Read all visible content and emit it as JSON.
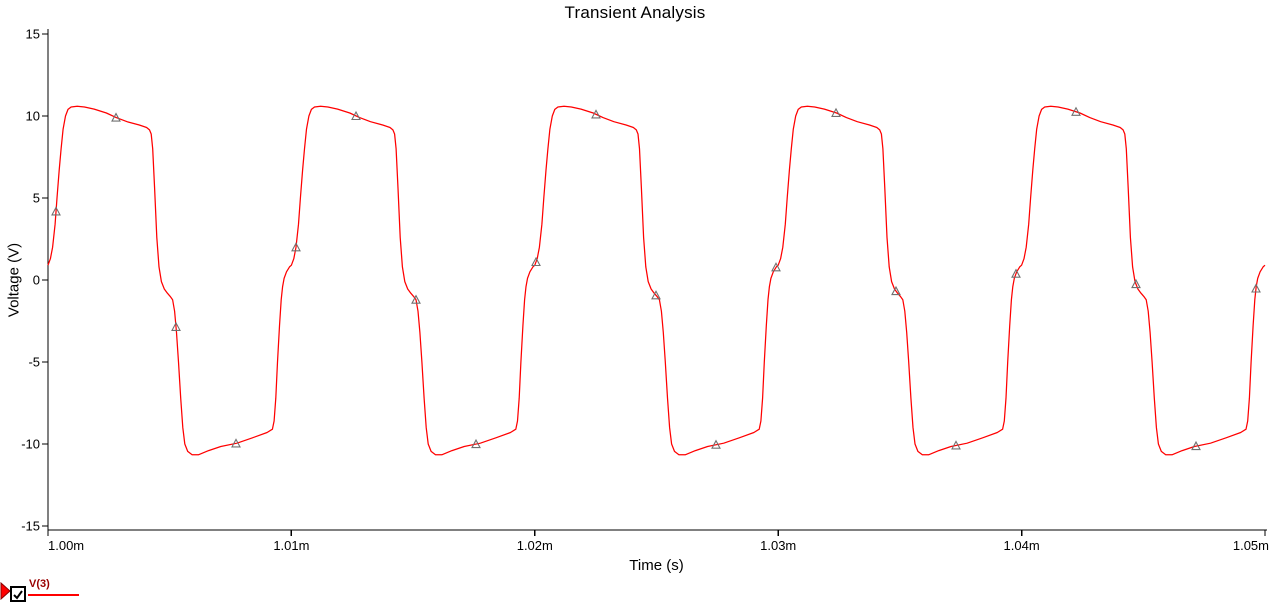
{
  "title": "Transient Analysis",
  "chart_data": {
    "type": "line",
    "title": "Transient Analysis",
    "xlabel": "Time (s)",
    "ylabel": "Voltage (V)",
    "grid": false,
    "background": "#ffffff",
    "axis_color": "#000000",
    "xlim_ms": [
      1.0,
      1.05
    ],
    "x_ticks": [
      {
        "label": "1.00m",
        "t_ms": 1.0
      },
      {
        "label": "1.01m",
        "t_ms": 1.01
      },
      {
        "label": "1.02m",
        "t_ms": 1.02
      },
      {
        "label": "1.03m",
        "t_ms": 1.03
      },
      {
        "label": "1.04m",
        "t_ms": 1.04
      },
      {
        "label": "1.05m",
        "t_ms": 1.05
      }
    ],
    "ylim": [
      -15,
      15
    ],
    "y_ticks": [
      15,
      10,
      5,
      0,
      -5,
      -10,
      -15
    ],
    "legend_position": "bottom-left",
    "series": [
      {
        "name": "V(3)",
        "color": "#ff0000",
        "visible": true,
        "shape_note": "saturated/clipped sine, ~100 kHz, tops droop from +10.6 V to +9.1 V, bottoms rise from -10.7 V to -9.1 V, crossover shoulders near 0 V",
        "t_start_ms": 1.0,
        "period_ms": 0.01,
        "periods_shown": 5,
        "waveform_one_period_phase_volts": [
          [
            0.0,
            0.9
          ],
          [
            0.01,
            1.3
          ],
          [
            0.019,
            2.0
          ],
          [
            0.029,
            3.4
          ],
          [
            0.037,
            5.0
          ],
          [
            0.046,
            6.7
          ],
          [
            0.054,
            8.0
          ],
          [
            0.062,
            9.2
          ],
          [
            0.072,
            10.0
          ],
          [
            0.082,
            10.4
          ],
          [
            0.095,
            10.55
          ],
          [
            0.12,
            10.6
          ],
          [
            0.15,
            10.55
          ],
          [
            0.19,
            10.42
          ],
          [
            0.24,
            10.18
          ],
          [
            0.28,
            9.9
          ],
          [
            0.325,
            9.65
          ],
          [
            0.375,
            9.45
          ],
          [
            0.405,
            9.3
          ],
          [
            0.417,
            9.15
          ],
          [
            0.424,
            8.9
          ],
          [
            0.43,
            8.0
          ],
          [
            0.438,
            5.6
          ],
          [
            0.447,
            2.6
          ],
          [
            0.456,
            0.8
          ],
          [
            0.466,
            -0.1
          ],
          [
            0.478,
            -0.55
          ],
          [
            0.49,
            -0.8
          ],
          [
            0.502,
            -1.0
          ],
          [
            0.512,
            -1.2
          ],
          [
            0.52,
            -1.9
          ],
          [
            0.528,
            -3.2
          ],
          [
            0.536,
            -5.0
          ],
          [
            0.545,
            -7.2
          ],
          [
            0.554,
            -9.0
          ],
          [
            0.562,
            -10.0
          ],
          [
            0.574,
            -10.45
          ],
          [
            0.592,
            -10.65
          ],
          [
            0.618,
            -10.66
          ],
          [
            0.66,
            -10.4
          ],
          [
            0.71,
            -10.15
          ],
          [
            0.776,
            -9.95
          ],
          [
            0.84,
            -9.62
          ],
          [
            0.9,
            -9.3
          ],
          [
            0.922,
            -9.1
          ],
          [
            0.929,
            -8.6
          ],
          [
            0.936,
            -7.2
          ],
          [
            0.943,
            -5.0
          ],
          [
            0.951,
            -2.8
          ],
          [
            0.958,
            -1.2
          ],
          [
            0.964,
            -0.4
          ],
          [
            0.97,
            0.1
          ],
          [
            0.98,
            0.5
          ],
          [
            0.992,
            0.8
          ]
        ],
        "sample_markers": {
          "shape": "triangle-up",
          "color": "#707070",
          "first_t_ms": 1.000329,
          "interval_ms": 0.0024651,
          "count": 21
        }
      }
    ]
  },
  "legend": {
    "series_label": "V(3)",
    "checkbox_checked": true,
    "flag_color": "#ff0000",
    "flag_border_color": "#8b0000",
    "label_color": "#990000",
    "line_color": "#ff0000"
  }
}
